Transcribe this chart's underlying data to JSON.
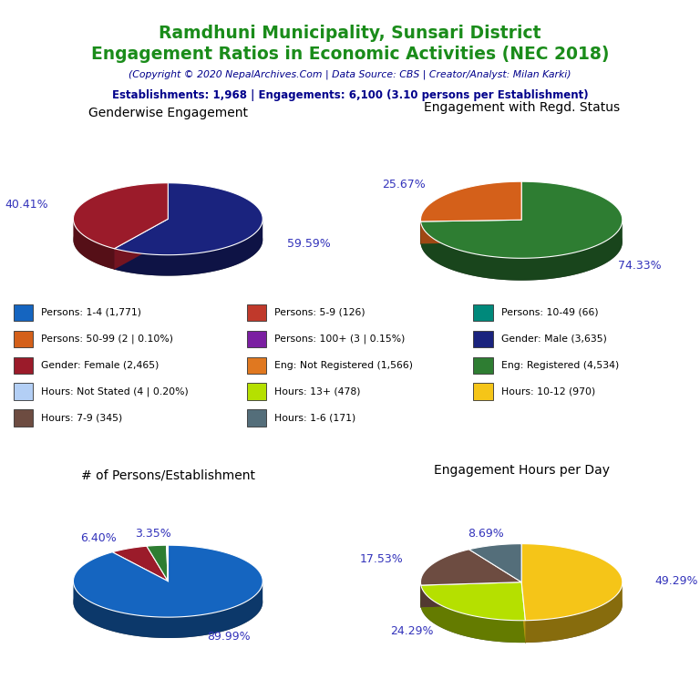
{
  "title_line1": "Ramdhuni Municipality, Sunsari District",
  "title_line2": "Engagement Ratios in Economic Activities (NEC 2018)",
  "subtitle": "(Copyright © 2020 NepalArchives.Com | Data Source: CBS | Creator/Analyst: Milan Karki)",
  "stats_line": "Establishments: 1,968 | Engagements: 6,100 (3.10 persons per Establishment)",
  "title_color": "#1a8c1a",
  "subtitle_color": "#00008B",
  "stats_color": "#00008B",
  "pie1_title": "Genderwise Engagement",
  "pie1_values": [
    59.59,
    40.41
  ],
  "pie1_colors": [
    "#1a237e",
    "#9b1b2a"
  ],
  "pie1_labels": [
    "59.59%",
    "40.41%"
  ],
  "pie2_title": "Engagement with Regd. Status",
  "pie2_values": [
    74.33,
    25.67
  ],
  "pie2_colors": [
    "#2e7d32",
    "#d4601a"
  ],
  "pie2_labels": [
    "74.33%",
    "25.67%"
  ],
  "pie3_title": "# of Persons/Establishment",
  "pie3_values": [
    89.99,
    6.4,
    3.35,
    0.1,
    0.15,
    0.01
  ],
  "pie3_colors": [
    "#1565c0",
    "#9b1b2a",
    "#2e7d32",
    "#d4601a",
    "#7b1fa2",
    "#c8e6c9"
  ],
  "pie3_labels": [
    "89.99%",
    "6.40%",
    "3.35%",
    "",
    "",
    ""
  ],
  "pie4_title": "Engagement Hours per Day",
  "pie4_values": [
    49.29,
    24.29,
    17.53,
    8.69
  ],
  "pie4_colors": [
    "#f5c518",
    "#b5e000",
    "#6d4c41",
    "#546e7a"
  ],
  "pie4_labels": [
    "49.29%",
    "24.29%",
    "17.53%",
    "8.69%"
  ],
  "legend_items": [
    {
      "label": "Persons: 1-4 (1,771)",
      "color": "#1565c0"
    },
    {
      "label": "Persons: 5-9 (126)",
      "color": "#c0392b"
    },
    {
      "label": "Persons: 10-49 (66)",
      "color": "#00897b"
    },
    {
      "label": "Persons: 50-99 (2 | 0.10%)",
      "color": "#d4601a"
    },
    {
      "label": "Persons: 100+ (3 | 0.15%)",
      "color": "#7b1fa2"
    },
    {
      "label": "Gender: Male (3,635)",
      "color": "#1a237e"
    },
    {
      "label": "Gender: Female (2,465)",
      "color": "#9b1b2a"
    },
    {
      "label": "Eng: Not Registered (1,566)",
      "color": "#e07820"
    },
    {
      "label": "Eng: Registered (4,534)",
      "color": "#2e7d32"
    },
    {
      "label": "Hours: Not Stated (4 | 0.20%)",
      "color": "#b3cff5"
    },
    {
      "label": "Hours: 13+ (478)",
      "color": "#b5e000"
    },
    {
      "label": "Hours: 10-12 (970)",
      "color": "#f5c518"
    },
    {
      "label": "Hours: 7-9 (345)",
      "color": "#6d4c41"
    },
    {
      "label": "Hours: 1-6 (171)",
      "color": "#546e7a"
    }
  ]
}
